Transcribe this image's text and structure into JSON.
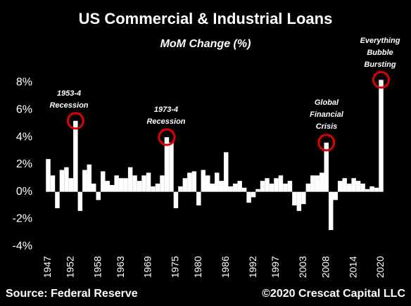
{
  "chart_data": {
    "type": "bar",
    "title": "US Commercial & Industrial Loans",
    "subtitle": "MoM Change (%)",
    "x": [
      1947,
      1948,
      1949,
      1950,
      1951,
      1952,
      1953,
      1954,
      1955,
      1956,
      1957,
      1958,
      1959,
      1960,
      1961,
      1962,
      1963,
      1964,
      1965,
      1966,
      1967,
      1968,
      1969,
      1970,
      1971,
      1972,
      1973,
      1974,
      1975,
      1976,
      1977,
      1978,
      1979,
      1980,
      1981,
      1982,
      1983,
      1984,
      1985,
      1986,
      1987,
      1988,
      1989,
      1990,
      1991,
      1992,
      1993,
      1994,
      1995,
      1996,
      1997,
      1998,
      1999,
      2000,
      2001,
      2002,
      2003,
      2004,
      2005,
      2006,
      2007,
      2008,
      2009,
      2010,
      2011,
      2012,
      2013,
      2014,
      2015,
      2016,
      2017,
      2018,
      2019,
      2020
    ],
    "values": [
      2.4,
      1.2,
      -1.2,
      1.6,
      1.8,
      1.0,
      5.2,
      -1.4,
      1.6,
      2.0,
      0.6,
      -0.6,
      1.5,
      0.8,
      0.5,
      1.2,
      1.0,
      1.0,
      1.8,
      1.2,
      0.8,
      1.2,
      1.4,
      0.4,
      0.6,
      1.2,
      4.0,
      3.6,
      -1.2,
      0.4,
      1.0,
      1.4,
      1.5,
      -1.0,
      1.6,
      1.2,
      0.6,
      1.4,
      0.8,
      2.9,
      0.4,
      0.6,
      0.8,
      0.3,
      -0.8,
      -0.4,
      0.2,
      0.8,
      1.0,
      0.6,
      1.0,
      1.2,
      0.6,
      0.8,
      -1.0,
      -1.4,
      -0.9,
      0.6,
      1.2,
      1.2,
      1.4,
      3.6,
      -2.8,
      -0.6,
      0.8,
      1.0,
      0.6,
      1.0,
      0.8,
      0.6,
      0.2,
      0.4,
      0.3,
      8.2
    ],
    "color": "#ffffff",
    "xlim": [
      1946,
      2021
    ],
    "xticks": [
      1947,
      1952,
      1958,
      1963,
      1969,
      1975,
      1980,
      1986,
      1992,
      1997,
      2003,
      2008,
      2014,
      2020
    ],
    "ylim": [
      -4.5,
      9
    ],
    "yticks": [
      {
        "value": -4,
        "label": "-4%"
      },
      {
        "value": -2,
        "label": "-2%"
      },
      {
        "value": 0,
        "label": "0%"
      },
      {
        "value": 2,
        "label": "2%"
      },
      {
        "value": 4,
        "label": "4%"
      },
      {
        "value": 6,
        "label": "6%"
      },
      {
        "value": 8,
        "label": "8%"
      }
    ],
    "annotations": [
      {
        "text": [
          "1953-4",
          "Recession"
        ]
      },
      {
        "text": [
          "1973-4",
          "Recession"
        ]
      },
      {
        "text": [
          "Global",
          "Financial",
          "Crisis"
        ]
      },
      {
        "text": [
          "Everything",
          "Bubble",
          "Bursting"
        ]
      }
    ],
    "source": "Source: Federal Reserve",
    "credit": "©2020 Crescat Capital LLC"
  }
}
